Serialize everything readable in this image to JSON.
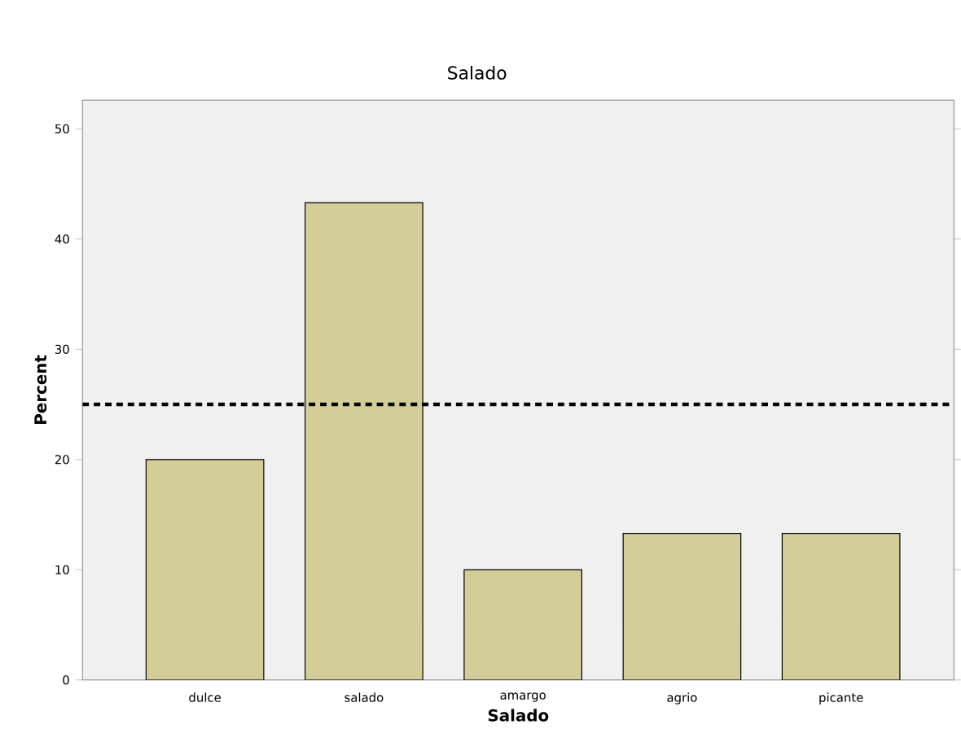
{
  "chart_data": {
    "type": "bar",
    "title": "Salado",
    "xlabel": "Salado",
    "ylabel": "Percent",
    "categories": [
      "dulce",
      "salado",
      "amargo",
      "agrio",
      "picante"
    ],
    "values": [
      20,
      43.3,
      10,
      13.3,
      13.3
    ],
    "color": "#d3ce97",
    "ylim": [
      0,
      52.6
    ],
    "yticks": [
      0,
      10,
      20,
      30,
      40,
      50
    ],
    "ref_lines": [
      {
        "axis": "y",
        "value": 25,
        "line_style": "dashed",
        "color": "#000000"
      }
    ]
  }
}
